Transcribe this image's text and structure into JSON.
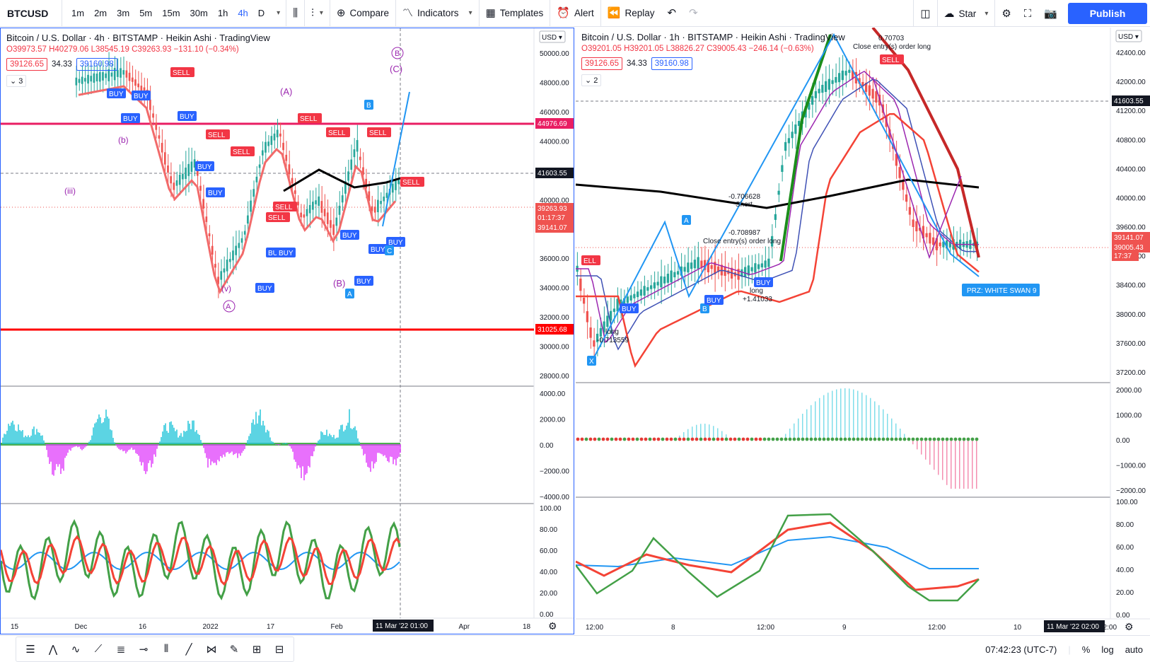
{
  "toolbar": {
    "symbol": "BTCUSD",
    "timeframes": [
      "1m",
      "2m",
      "3m",
      "5m",
      "15m",
      "30m",
      "1h",
      "4h",
      "D"
    ],
    "active_timeframe": "4h",
    "compare": "Compare",
    "indicators": "Indicators",
    "templates": "Templates",
    "alert": "Alert",
    "replay": "Replay",
    "star": "Star",
    "publish": "Publish"
  },
  "left_chart": {
    "title": "Bitcoin / U.S. Dollar · 4h · BITSTAMP · Heikin Ashi · TradingView",
    "ohlc": "O39973.57 H40279.06 L38545.19 C39263.93 −131.10 (−0.34%)",
    "bid": "39126.65",
    "spread": "34.33",
    "ask": "39160.98",
    "collapse": "3",
    "currency": "USD",
    "price_ticks": [
      "50000.00",
      "48000.00",
      "46000.00",
      "44000.00",
      "42000.00",
      "40000.00",
      "38000.00",
      "36000.00",
      "34000.00",
      "32000.00",
      "30000.00",
      "28000.00"
    ],
    "price_tags": {
      "top_line": "44976.69",
      "crosshair": "41603.55",
      "last": "39263.93",
      "countdown": "01:17:37",
      "ask": "39141.07",
      "bottom_line": "31025.68"
    },
    "osc1_ticks": [
      "4000.00",
      "2000.00",
      "0.00",
      "−2000.00",
      "−4000.00"
    ],
    "osc2_ticks": [
      "100.00",
      "80.00",
      "60.00",
      "40.00",
      "20.00",
      "0.00"
    ],
    "time_ticks": [
      "15",
      "Dec",
      "16",
      "2022",
      "17",
      "Feb",
      "Ma",
      "Apr",
      "18"
    ],
    "time_cursor": "11 Mar '22   01:00",
    "wave_labels": [
      "(iii)",
      "(b)",
      "(v)",
      "A",
      "(A)",
      "(B)",
      "(C)",
      "B"
    ],
    "signals": {
      "buy": "BUY",
      "sell": "SELL",
      "b": "B",
      "a": "A",
      "c": "C"
    }
  },
  "right_chart": {
    "title": "Bitcoin / U.S. Dollar · 1h · BITSTAMP · Heikin Ashi · TradingView",
    "ohlc": "O39201.05 H39201.05 L38826.27 C39005.43 −246.14 (−0.63%)",
    "bid": "39126.65",
    "spread": "34.33",
    "ask": "39160.98",
    "collapse": "2",
    "currency": "USD",
    "price_ticks": [
      "42400.00",
      "42000.00",
      "41200.00",
      "40800.00",
      "40400.00",
      "40000.00",
      "39600.00",
      "38800.00",
      "38400.00",
      "38000.00",
      "37600.00",
      "37200.00"
    ],
    "price_tags": {
      "crosshair": "41603.55",
      "ask": "39141.07",
      "last": "39005.43",
      "countdown": "17:37"
    },
    "osc1_ticks": [
      "2000.00",
      "1000.00",
      "0.00",
      "−1000.00",
      "−2000.00"
    ],
    "osc2_ticks": [
      "100.00",
      "80.00",
      "60.00",
      "40.00",
      "20.00",
      "0.00"
    ],
    "time_ticks": [
      "12:00",
      "8",
      "12:00",
      "9",
      "12:00",
      "10",
      "12:00"
    ],
    "time_cursor": "11 Mar '22   02:00",
    "annotations": {
      "short_val": "-0.706628",
      "short_lbl": "Short",
      "close_long1": "-0.708987",
      "close_long1_txt": "Close entry(s) order long",
      "long1_lbl": "long",
      "long1_val": "+1.41033",
      "long2_lbl": "long",
      "long2_val": "-0.713559",
      "top_val": "0.70703",
      "close_long2_txt": "Close entry(s) order long",
      "prz": "PRZ: WHITE SWAN 9",
      "x": "X",
      "a": "A",
      "b": "B",
      "buy": "BUY",
      "sell": "SELL",
      "ell": "ELL"
    }
  },
  "bottombar": {
    "time": "07:42:23 (UTC-7)",
    "percent": "%",
    "log": "log",
    "auto": "auto"
  }
}
